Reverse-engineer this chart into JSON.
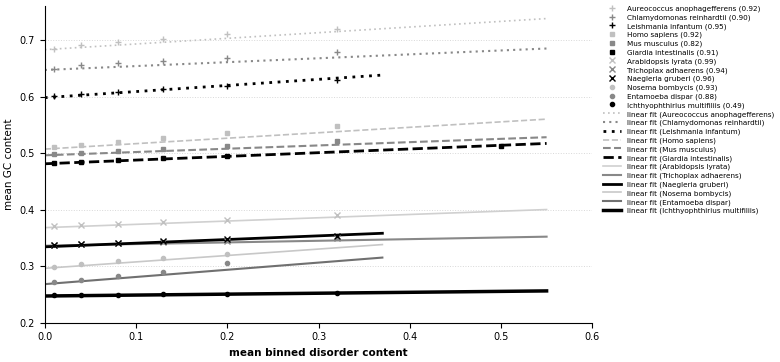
{
  "organisms": [
    {
      "name": "Aureococcus anophagefferens",
      "r2": "0.92",
      "marker": "+",
      "mcolor": "#c0c0c0",
      "msize": 5,
      "points_x": [
        0.01,
        0.04,
        0.08,
        0.13,
        0.2,
        0.32
      ],
      "points_y": [
        0.685,
        0.692,
        0.697,
        0.702,
        0.71,
        0.72
      ],
      "fit_x": [
        0.0,
        0.55
      ],
      "fit_y": [
        0.683,
        0.738
      ],
      "fit_style": "dotted",
      "fit_color": "#c0c0c0",
      "fit_lw": 1.2
    },
    {
      "name": "Chlamydomonas reinhardtii",
      "r2": "0.90",
      "marker": "+",
      "mcolor": "#888888",
      "msize": 5,
      "points_x": [
        0.01,
        0.04,
        0.08,
        0.13,
        0.2,
        0.32
      ],
      "points_y": [
        0.649,
        0.655,
        0.659,
        0.663,
        0.668,
        0.678
      ],
      "fit_x": [
        0.0,
        0.55
      ],
      "fit_y": [
        0.647,
        0.685
      ],
      "fit_style": "dotted",
      "fit_color": "#888888",
      "fit_lw": 1.5
    },
    {
      "name": "Leishmania infantum",
      "r2": "0.95",
      "marker": "+",
      "mcolor": "#000000",
      "msize": 5,
      "points_x": [
        0.01,
        0.04,
        0.08,
        0.13,
        0.2,
        0.32
      ],
      "points_y": [
        0.601,
        0.604,
        0.608,
        0.613,
        0.619,
        0.63
      ],
      "fit_x": [
        0.0,
        0.37
      ],
      "fit_y": [
        0.598,
        0.638
      ],
      "fit_style": "dotted",
      "fit_color": "#000000",
      "fit_lw": 2.0
    },
    {
      "name": "Homo sapiens",
      "r2": "0.92",
      "marker": "s",
      "mcolor": "#c0c0c0",
      "msize": 3,
      "points_x": [
        0.01,
        0.04,
        0.08,
        0.13,
        0.2,
        0.32
      ],
      "points_y": [
        0.511,
        0.515,
        0.52,
        0.527,
        0.535,
        0.548
      ],
      "fit_x": [
        0.0,
        0.55
      ],
      "fit_y": [
        0.507,
        0.56
      ],
      "fit_style": "dashed",
      "fit_color": "#c0c0c0",
      "fit_lw": 1.2
    },
    {
      "name": "Mus musculus",
      "r2": "0.82",
      "marker": "s",
      "mcolor": "#888888",
      "msize": 3,
      "points_x": [
        0.01,
        0.04,
        0.08,
        0.13,
        0.2,
        0.32
      ],
      "points_y": [
        0.498,
        0.5,
        0.503,
        0.507,
        0.512,
        0.521
      ],
      "fit_x": [
        0.0,
        0.55
      ],
      "fit_y": [
        0.496,
        0.528
      ],
      "fit_style": "dashed",
      "fit_color": "#888888",
      "fit_lw": 1.5
    },
    {
      "name": "Giardia intestinalis",
      "r2": "0.91",
      "marker": "s",
      "mcolor": "#000000",
      "msize": 3,
      "points_x": [
        0.01,
        0.04,
        0.08,
        0.13,
        0.2,
        0.5
      ],
      "points_y": [
        0.483,
        0.485,
        0.488,
        0.491,
        0.494,
        0.512
      ],
      "fit_x": [
        0.0,
        0.55
      ],
      "fit_y": [
        0.481,
        0.517
      ],
      "fit_style": "dashed",
      "fit_color": "#000000",
      "fit_lw": 2.0
    },
    {
      "name": "Arabidopsis lyrata",
      "r2": "0.99",
      "marker": "x",
      "mcolor": "#c0c0c0",
      "msize": 4,
      "points_x": [
        0.01,
        0.04,
        0.08,
        0.13,
        0.2,
        0.32
      ],
      "points_y": [
        0.37,
        0.372,
        0.375,
        0.378,
        0.382,
        0.39
      ],
      "fit_x": [
        0.0,
        0.55
      ],
      "fit_y": [
        0.368,
        0.4
      ],
      "fit_style": "solid",
      "fit_color": "#d0d0d0",
      "fit_lw": 1.2
    },
    {
      "name": "Trichoplax adhaerens",
      "r2": "0.94",
      "marker": "x",
      "mcolor": "#888888",
      "msize": 4,
      "points_x": [
        0.01,
        0.04,
        0.08,
        0.13,
        0.2,
        0.32
      ],
      "points_y": [
        0.337,
        0.339,
        0.34,
        0.342,
        0.344,
        0.349
      ],
      "fit_x": [
        0.0,
        0.55
      ],
      "fit_y": [
        0.336,
        0.352
      ],
      "fit_style": "solid",
      "fit_color": "#888888",
      "fit_lw": 1.5
    },
    {
      "name": "Naegleria gruberi",
      "r2": "0.96",
      "marker": "x",
      "mcolor": "#000000",
      "msize": 4,
      "points_x": [
        0.01,
        0.04,
        0.08,
        0.13,
        0.2,
        0.32
      ],
      "points_y": [
        0.337,
        0.339,
        0.341,
        0.344,
        0.347,
        0.353
      ],
      "fit_x": [
        0.0,
        0.37
      ],
      "fit_y": [
        0.334,
        0.358
      ],
      "fit_style": "solid",
      "fit_color": "#000000",
      "fit_lw": 2.0
    },
    {
      "name": "Nosema bombycis",
      "r2": "0.93",
      "marker": "o",
      "mcolor": "#c0c0c0",
      "msize": 3,
      "points_x": [
        0.01,
        0.04,
        0.08,
        0.13,
        0.2
      ],
      "points_y": [
        0.299,
        0.304,
        0.309,
        0.315,
        0.322
      ],
      "fit_x": [
        0.0,
        0.37
      ],
      "fit_y": [
        0.296,
        0.338
      ],
      "fit_style": "solid",
      "fit_color": "#c8c8c8",
      "fit_lw": 1.2
    },
    {
      "name": "Entamoeba dispar",
      "r2": "0.88",
      "marker": "o",
      "mcolor": "#888888",
      "msize": 3,
      "points_x": [
        0.01,
        0.04,
        0.08,
        0.13,
        0.2
      ],
      "points_y": [
        0.271,
        0.276,
        0.282,
        0.29,
        0.305
      ],
      "fit_x": [
        0.0,
        0.37
      ],
      "fit_y": [
        0.268,
        0.315
      ],
      "fit_style": "solid",
      "fit_color": "#707070",
      "fit_lw": 1.5
    },
    {
      "name": "Ichthyophthirius multifiliis",
      "r2": "0.49",
      "marker": "o",
      "mcolor": "#000000",
      "msize": 3,
      "points_x": [
        0.01,
        0.04,
        0.08,
        0.13,
        0.2,
        0.32
      ],
      "points_y": [
        0.248,
        0.249,
        0.249,
        0.25,
        0.251,
        0.252
      ],
      "fit_x": [
        0.0,
        0.55
      ],
      "fit_y": [
        0.247,
        0.256
      ],
      "fit_style": "solid",
      "fit_color": "#000000",
      "fit_lw": 2.5
    }
  ],
  "xlim": [
    0.0,
    0.6
  ],
  "ylim": [
    0.2,
    0.76
  ],
  "xlabel": "mean binned disorder content",
  "ylabel": "mean GC content",
  "xticks": [
    0.0,
    0.1,
    0.2,
    0.3,
    0.4,
    0.5,
    0.6
  ],
  "yticks": [
    0.2,
    0.3,
    0.4,
    0.5,
    0.6,
    0.7
  ],
  "grid_color": "#d8d8d8",
  "bg_color": "#ffffff",
  "fig_width": 7.8,
  "fig_height": 3.62
}
